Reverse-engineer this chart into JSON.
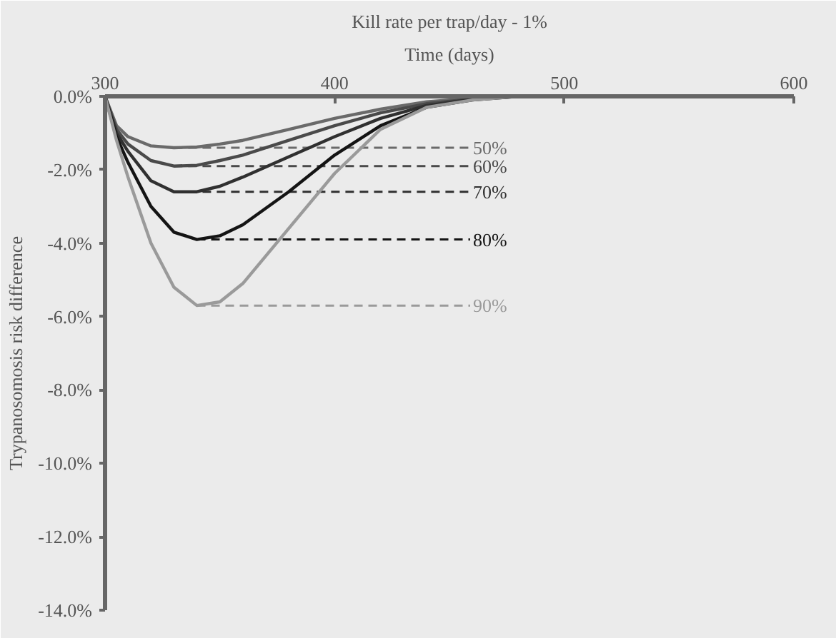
{
  "chart_data": {
    "type": "line",
    "title": "Kill rate per trap/day - 1%",
    "xlabel": "Time (days)",
    "ylabel": "Trypanosomosis risk difference",
    "x": [
      300,
      305,
      310,
      320,
      330,
      340,
      350,
      360,
      380,
      400,
      420,
      440,
      460,
      480,
      500
    ],
    "series": [
      {
        "name": "50%",
        "color": "#6a6a6a",
        "values": [
          0,
          -0.8,
          -1.1,
          -1.35,
          -1.4,
          -1.38,
          -1.3,
          -1.2,
          -0.9,
          -0.6,
          -0.35,
          -0.15,
          -0.05,
          0,
          0
        ]
      },
      {
        "name": "60%",
        "color": "#4a4a4a",
        "values": [
          0,
          -0.9,
          -1.3,
          -1.75,
          -1.9,
          -1.88,
          -1.75,
          -1.6,
          -1.2,
          -0.8,
          -0.45,
          -0.2,
          -0.07,
          0,
          0
        ]
      },
      {
        "name": "70%",
        "color": "#303030",
        "values": [
          0,
          -1.0,
          -1.5,
          -2.3,
          -2.6,
          -2.6,
          -2.45,
          -2.2,
          -1.65,
          -1.1,
          -0.6,
          -0.25,
          -0.08,
          0,
          0
        ]
      },
      {
        "name": "80%",
        "color": "#141414",
        "values": [
          0,
          -1.1,
          -1.8,
          -3.0,
          -3.7,
          -3.9,
          -3.8,
          -3.5,
          -2.6,
          -1.6,
          -0.8,
          -0.3,
          -0.1,
          0,
          0
        ]
      },
      {
        "name": "90%",
        "color": "#9a9a9a",
        "values": [
          0,
          -1.2,
          -2.2,
          -4.0,
          -5.2,
          -5.7,
          -5.6,
          -5.1,
          -3.6,
          -2.1,
          -0.9,
          -0.3,
          -0.1,
          0,
          0
        ]
      }
    ],
    "xlim": [
      300,
      600
    ],
    "xticks": [
      300,
      400,
      500,
      600
    ],
    "ylim": [
      -14,
      0
    ],
    "yticks": [
      {
        "value": 0,
        "label": "0.0%"
      },
      {
        "value": -2,
        "label": "-2.0%"
      },
      {
        "value": -4,
        "label": "-4.0%"
      },
      {
        "value": -6,
        "label": "-6.0%"
      },
      {
        "value": -8,
        "label": "-8.0%"
      },
      {
        "value": -10,
        "label": "-10.0%"
      },
      {
        "value": -12,
        "label": "-12.0%"
      },
      {
        "value": -14,
        "label": "-14.0%"
      }
    ],
    "grid": false,
    "legend": false,
    "marker": "none",
    "line_style": "solid"
  }
}
